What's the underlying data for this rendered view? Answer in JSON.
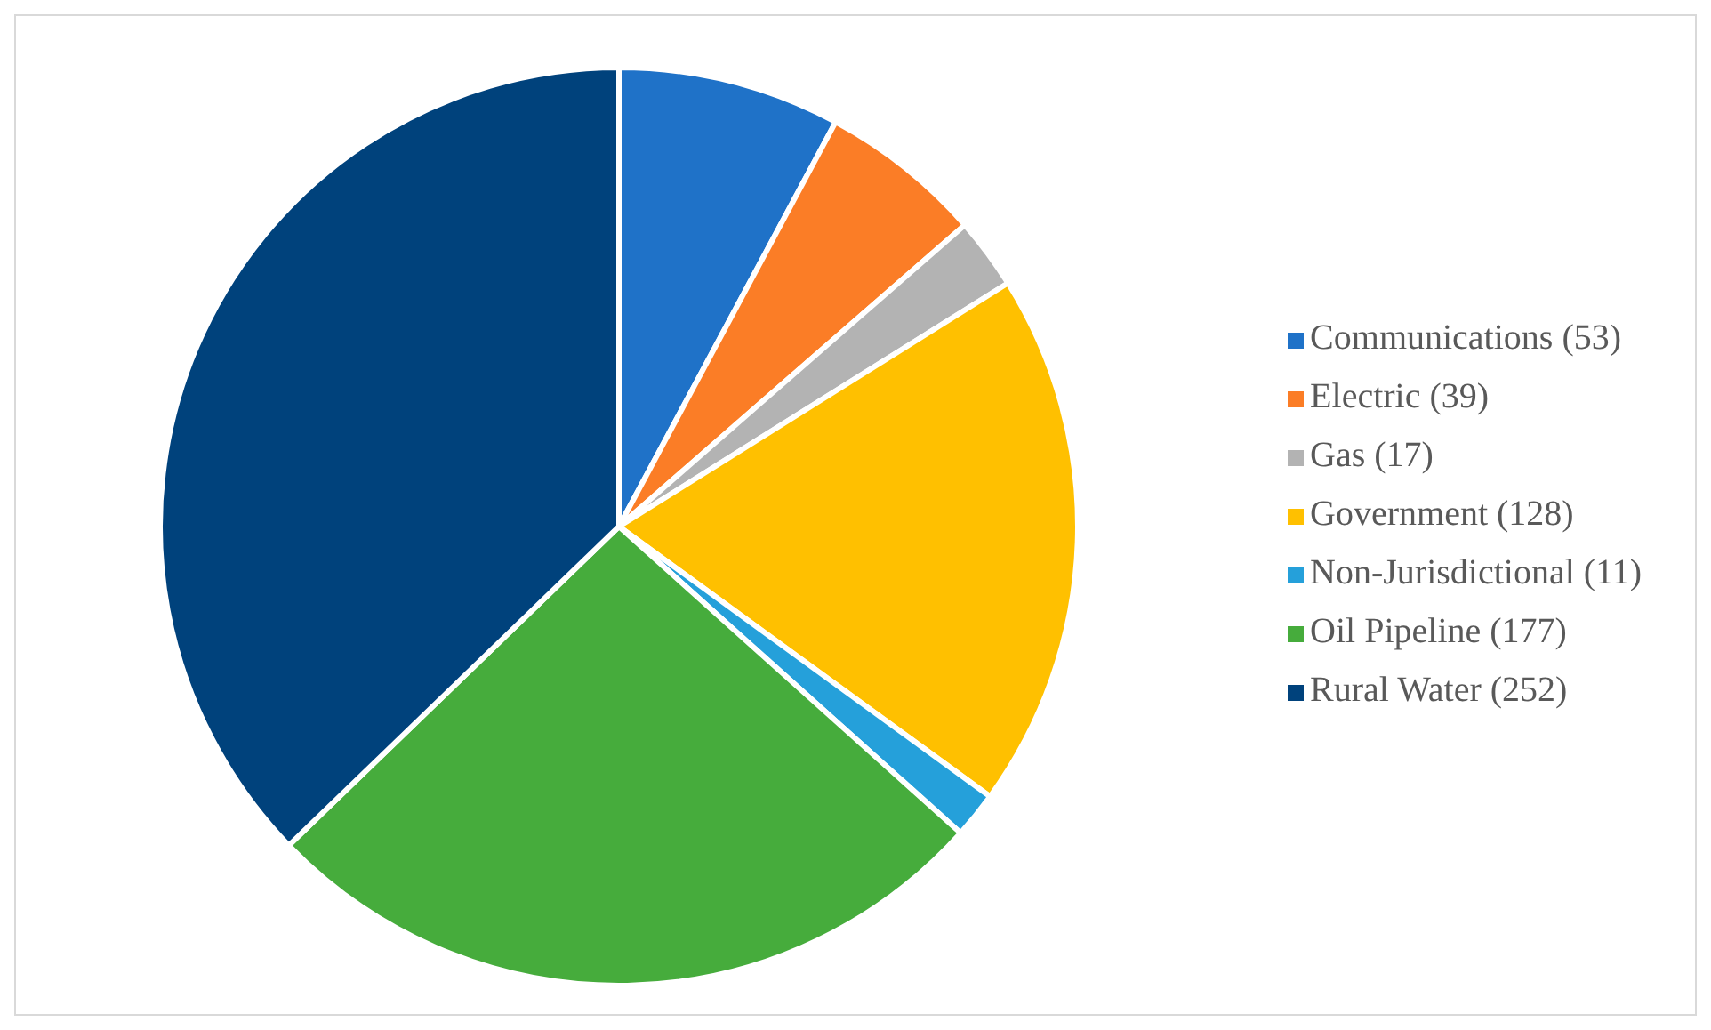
{
  "chart_data": {
    "type": "pie",
    "categories": [
      "Communications (53)",
      "Electric (39)",
      "Gas (17)",
      "Government (128)",
      "Non-Jurisdictional (11)",
      "Oil Pipeline (177)",
      "Rural Water (252)"
    ],
    "values": [
      53,
      39,
      17,
      128,
      11,
      177,
      252
    ],
    "colors": [
      "#1f72c8",
      "#fb7d26",
      "#b3b3b3",
      "#ffc000",
      "#25a0da",
      "#46ac3c",
      "#00427c"
    ],
    "legend": "right"
  }
}
